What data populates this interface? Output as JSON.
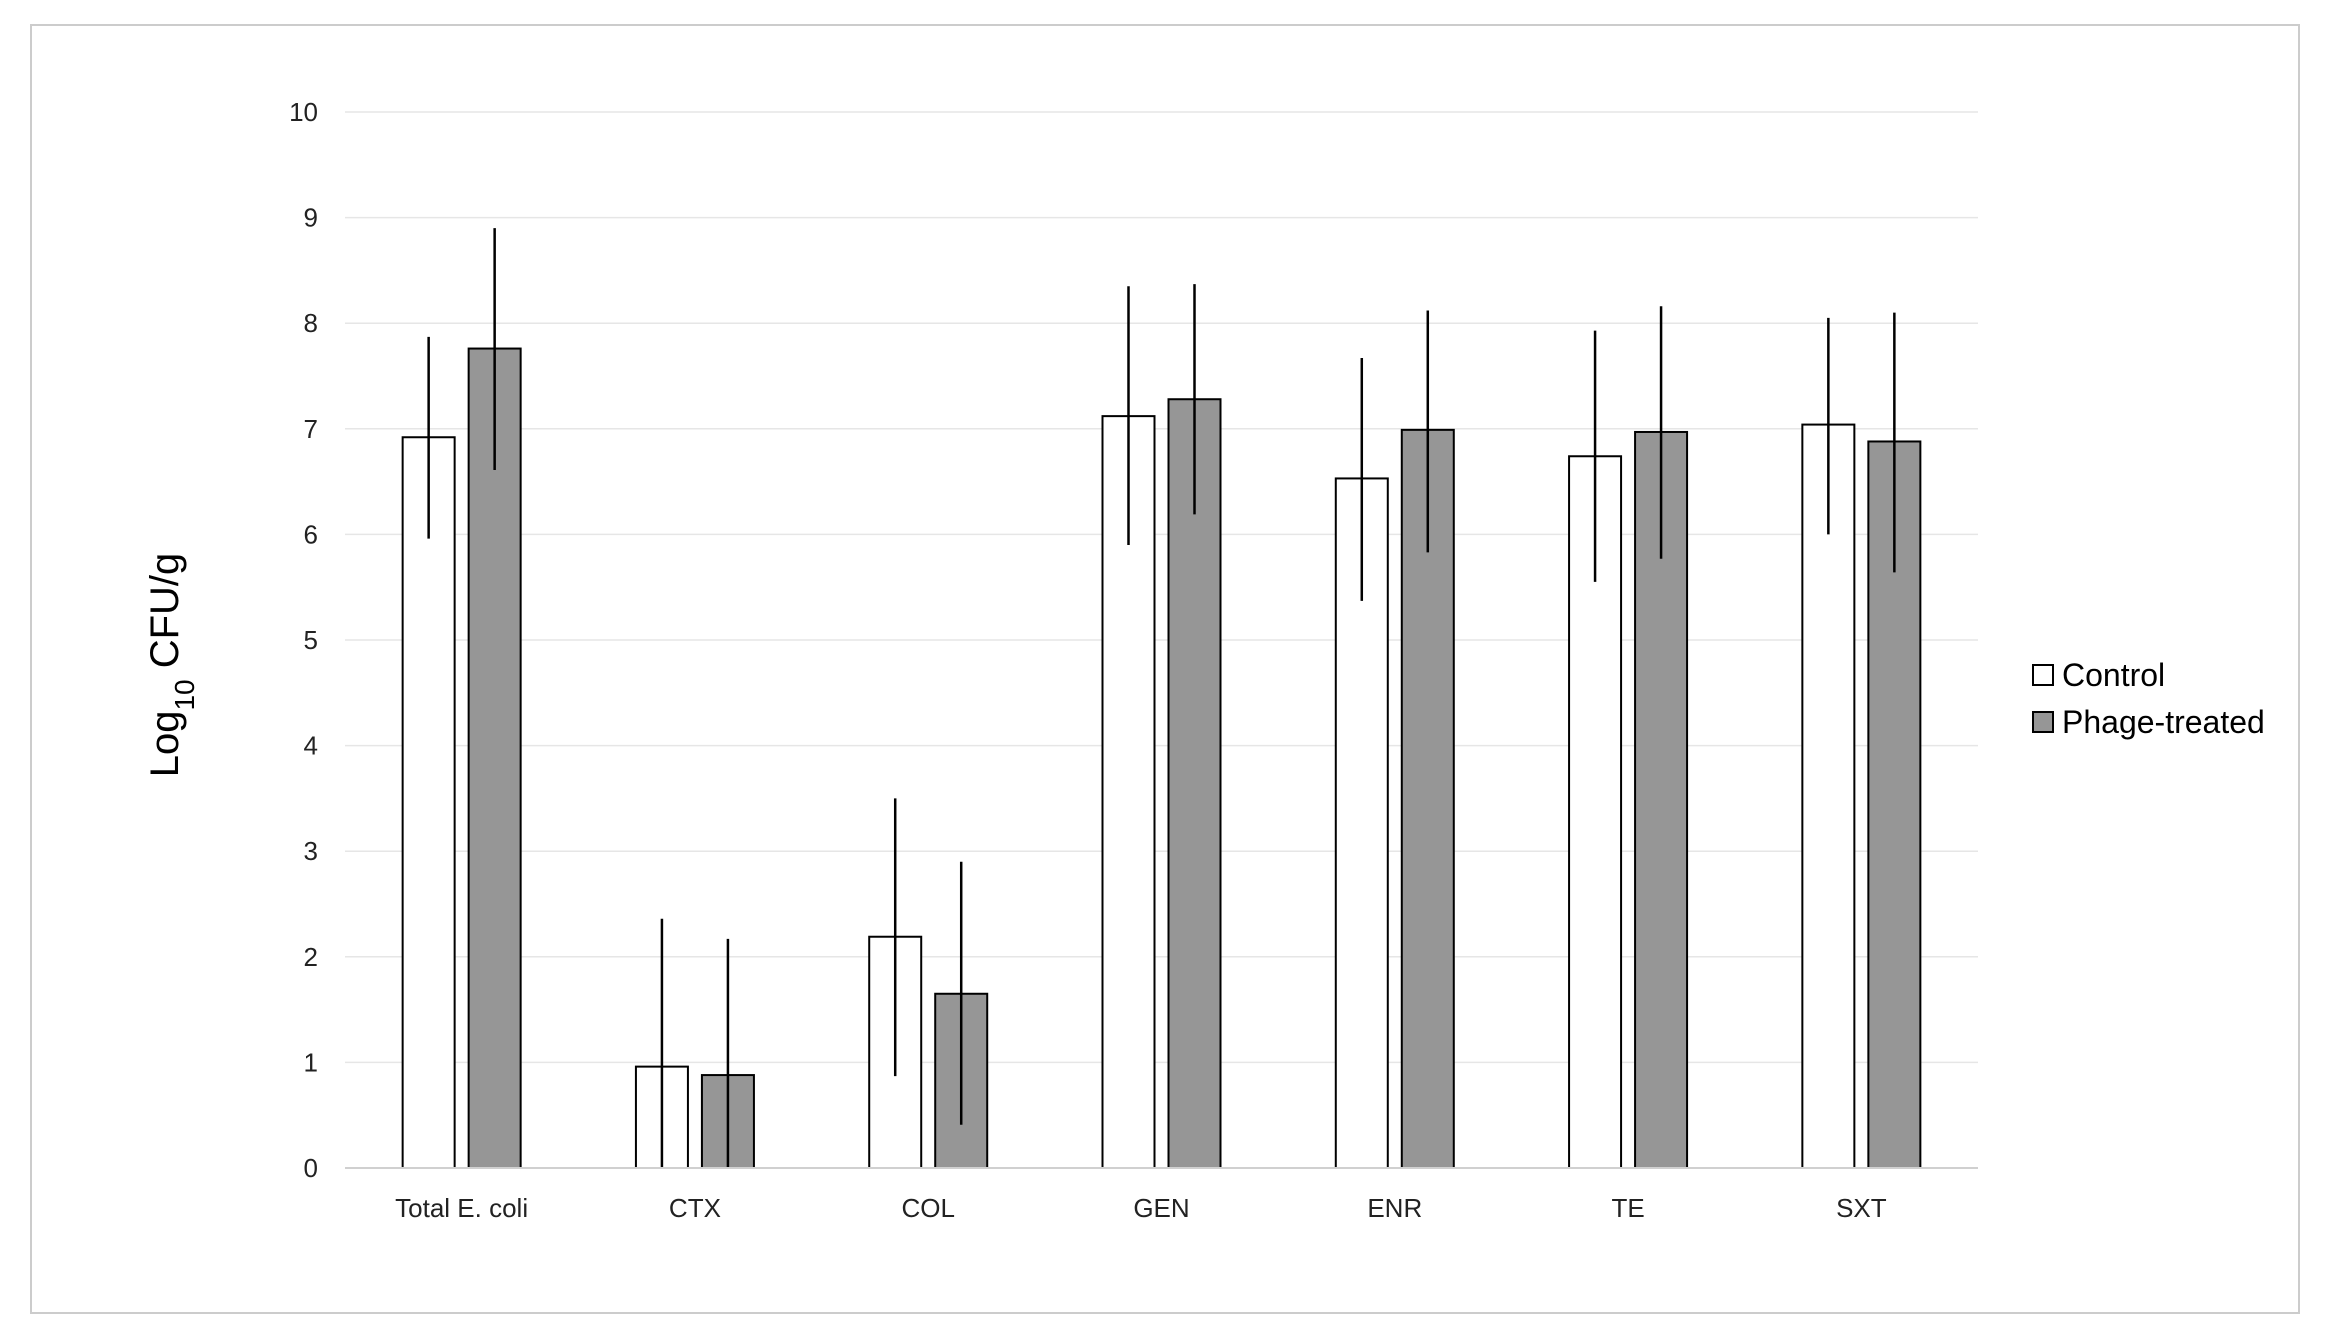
{
  "chart_data": {
    "type": "bar",
    "title": "",
    "xlabel": "",
    "ylabel": {
      "base": "Log",
      "subscript": "10",
      "unit": " CFU/g"
    },
    "ylim": [
      0,
      10
    ],
    "yticks": [
      0,
      1,
      2,
      3,
      4,
      5,
      6,
      7,
      8,
      9,
      10
    ],
    "grid": true,
    "legend_position": "right",
    "categories": [
      "Total E. coli",
      "CTX",
      "COL",
      "GEN",
      "ENR",
      "TE",
      "SXT"
    ],
    "series": [
      {
        "name": "Control",
        "color": "#ffffff",
        "values": [
          6.92,
          0.96,
          2.19,
          7.12,
          6.53,
          6.74,
          7.04
        ],
        "error_upper": [
          7.87,
          2.36,
          3.5,
          8.35,
          7.67,
          7.93,
          8.05
        ],
        "error_lower": [
          5.96,
          0.0,
          0.87,
          5.9,
          5.37,
          5.55,
          6.0
        ]
      },
      {
        "name": "Phage-treated",
        "color": "#969696",
        "values": [
          7.76,
          0.88,
          1.65,
          7.28,
          6.99,
          6.97,
          6.88
        ],
        "error_upper": [
          8.9,
          2.17,
          2.9,
          8.37,
          8.12,
          8.16,
          8.1
        ],
        "error_lower": [
          6.61,
          0.0,
          0.41,
          6.19,
          5.83,
          5.77,
          5.64
        ]
      }
    ]
  }
}
